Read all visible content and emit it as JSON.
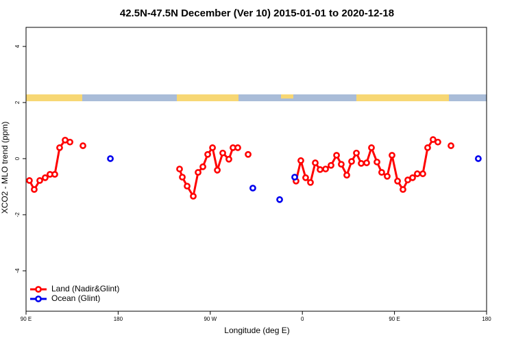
{
  "chart_data": {
    "type": "line",
    "title": "42.5N-47.5N December (Ver 10)   2015-01-01 to 2020-12-18",
    "x_label": "Longitude (deg E)",
    "y_label": "XCO2 - MLO trend (ppm)",
    "xlim": [
      -270,
      180
    ],
    "ylim": [
      -5.44,
      4.68
    ],
    "xticks": [
      {
        "value": -270,
        "label": "90 E"
      },
      {
        "value": -180,
        "label": "180"
      },
      {
        "value": -90,
        "label": "90 W"
      },
      0,
      {
        "value": 90,
        "label": "90 E"
      },
      {
        "value": 180,
        "label": "180"
      }
    ],
    "yticks": [
      -4,
      -2,
      0,
      2,
      4
    ],
    "legend": "bottomleft",
    "series": [
      {
        "name": "Land (Nadir&Glint)",
        "color": "#ff0000",
        "lines": true,
        "x": [
          -266.7,
          -262,
          -256.6,
          -251.3,
          -246.6,
          -241.9,
          -237.2,
          -231.8,
          -227.1,
          null,
          -214.4,
          null,
          -120.0,
          -117.3,
          -112.6,
          -106.6,
          -101.9,
          -97.2,
          -92.5,
          -87.8,
          -83.1,
          -77.8,
          -71.8,
          -67.8,
          -63.1,
          null,
          -53.0,
          null,
          -6.2,
          -1.5,
          3.2,
          7.9,
          12.6,
          17.3,
          22.7,
          28.0,
          33.4,
          38.0,
          43.4,
          48.1,
          52.8,
          57.5,
          62.8,
          67.5,
          72.9,
          77.5,
          82.9,
          87.6,
          93.0,
          98.3,
          103.0,
          107.7,
          112.3,
          117.7,
          122.4,
          127.7,
          132.4,
          null,
          145.2
        ],
        "values": [
          -0.78,
          -1.1,
          -0.78,
          -0.68,
          -0.56,
          -0.56,
          0.39,
          0.66,
          0.59,
          null,
          0.46,
          null,
          -0.37,
          -0.66,
          -0.98,
          -1.34,
          -0.49,
          -0.29,
          0.15,
          0.39,
          -0.41,
          0.2,
          -0.02,
          0.39,
          0.39,
          null,
          0.15,
          null,
          -0.8,
          -0.07,
          -0.68,
          -0.85,
          -0.15,
          -0.39,
          -0.37,
          -0.24,
          0.12,
          -0.2,
          -0.59,
          -0.1,
          0.2,
          -0.17,
          -0.15,
          0.39,
          -0.12,
          -0.49,
          -0.63,
          0.12,
          -0.8,
          -1.1,
          -0.76,
          -0.68,
          -0.54,
          -0.54,
          0.39,
          0.68,
          0.59,
          null,
          0.46
        ]
      },
      {
        "name": "Ocean (Glint)",
        "color": "#0000ee",
        "lines": false,
        "x": [
          -187.6,
          -48.4,
          -22.2,
          -7.5,
          171.9
        ],
        "values": [
          0.0,
          -1.05,
          -1.46,
          -0.66,
          0.0
        ]
      }
    ]
  }
}
